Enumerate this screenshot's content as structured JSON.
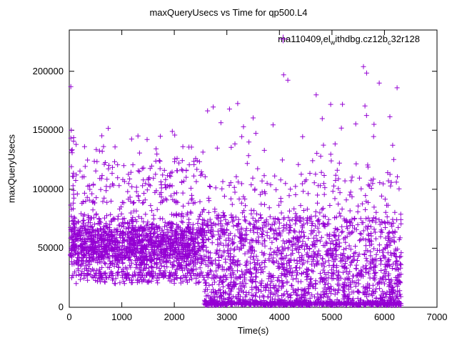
{
  "title": "maxQueryUsecs vs Time for qp500.L4",
  "legend": {
    "parts": {
      "p0": "ma110409",
      "s0": "r",
      "p1": "el",
      "s1": "w",
      "p2": "ithdbg.cz12b",
      "s2": "c",
      "p3": "32r128"
    },
    "marker": "plus",
    "color": "#9400d3"
  },
  "chart_data": {
    "type": "scatter",
    "title": "maxQueryUsecs vs Time for qp500.L4",
    "xlabel": "Time(s)",
    "ylabel": "maxQueryUsecs",
    "xlim": [
      0,
      7000
    ],
    "ylim": [
      0,
      235000
    ],
    "xticks": [
      0,
      1000,
      2000,
      3000,
      4000,
      5000,
      6000,
      7000
    ],
    "yticks": [
      0,
      50000,
      100000,
      150000,
      200000
    ],
    "grid": false,
    "legend_position": "top-right-inside",
    "series_name": "ma110409_rel_withdbg.cz12b_c32r128",
    "marker": {
      "shape": "plus",
      "color": "#9400d3",
      "size": 7
    },
    "seed": 42,
    "clusters": [
      {
        "count": 1500,
        "t": [
          20,
          2560
        ],
        "y": {
          "dist": "normal",
          "mean": 52000,
          "sd": 13000,
          "min": 27000,
          "max": 96000
        }
      },
      {
        "count": 130,
        "t": [
          20,
          2560
        ],
        "y": {
          "dist": "uniform",
          "min": 20000,
          "max": 30000
        }
      },
      {
        "count": 170,
        "t": [
          30,
          2560
        ],
        "y": {
          "dist": "uniform",
          "min": 88000,
          "max": 125000,
          "pow": 1.3
        }
      },
      {
        "count": 26,
        "t": [
          30,
          2560
        ],
        "y": {
          "dist": "uniform",
          "min": 125000,
          "max": 152000
        }
      },
      {
        "count": 14,
        "t": [
          25,
          85
        ],
        "y": {
          "dist": "uniform",
          "min": 60000,
          "max": 150000
        }
      },
      {
        "count": 620,
        "t": [
          2560,
          6320
        ],
        "y": {
          "dist": "uniform",
          "min": 1500,
          "max": 4500
        }
      },
      {
        "count": 950,
        "t": [
          2560,
          6320
        ],
        "y": {
          "dist": "uniform",
          "min": 4500,
          "max": 46000,
          "pow": 1.2
        }
      },
      {
        "count": 520,
        "t": [
          2560,
          6320
        ],
        "y": {
          "dist": "uniform",
          "min": 46000,
          "max": 76000
        }
      },
      {
        "count": 160,
        "t": [
          2560,
          6320
        ],
        "y": {
          "dist": "uniform",
          "min": 76000,
          "max": 112000,
          "pow": 1.3
        }
      },
      {
        "count": 48,
        "t": [
          2600,
          6320
        ],
        "y": {
          "dist": "uniform",
          "min": 112000,
          "max": 175000,
          "pow": 1.2
        }
      }
    ],
    "outlier_points": [
      [
        30,
        187000
      ],
      [
        38,
        150000
      ],
      [
        55,
        131000
      ],
      [
        3050,
        168000
      ],
      [
        3500,
        160500
      ],
      [
        4080,
        197000
      ],
      [
        4160,
        192500
      ],
      [
        4700,
        180000
      ],
      [
        5200,
        172000
      ],
      [
        5600,
        204000
      ],
      [
        5660,
        198500
      ],
      [
        5900,
        190000
      ],
      [
        6240,
        186000
      ]
    ]
  }
}
